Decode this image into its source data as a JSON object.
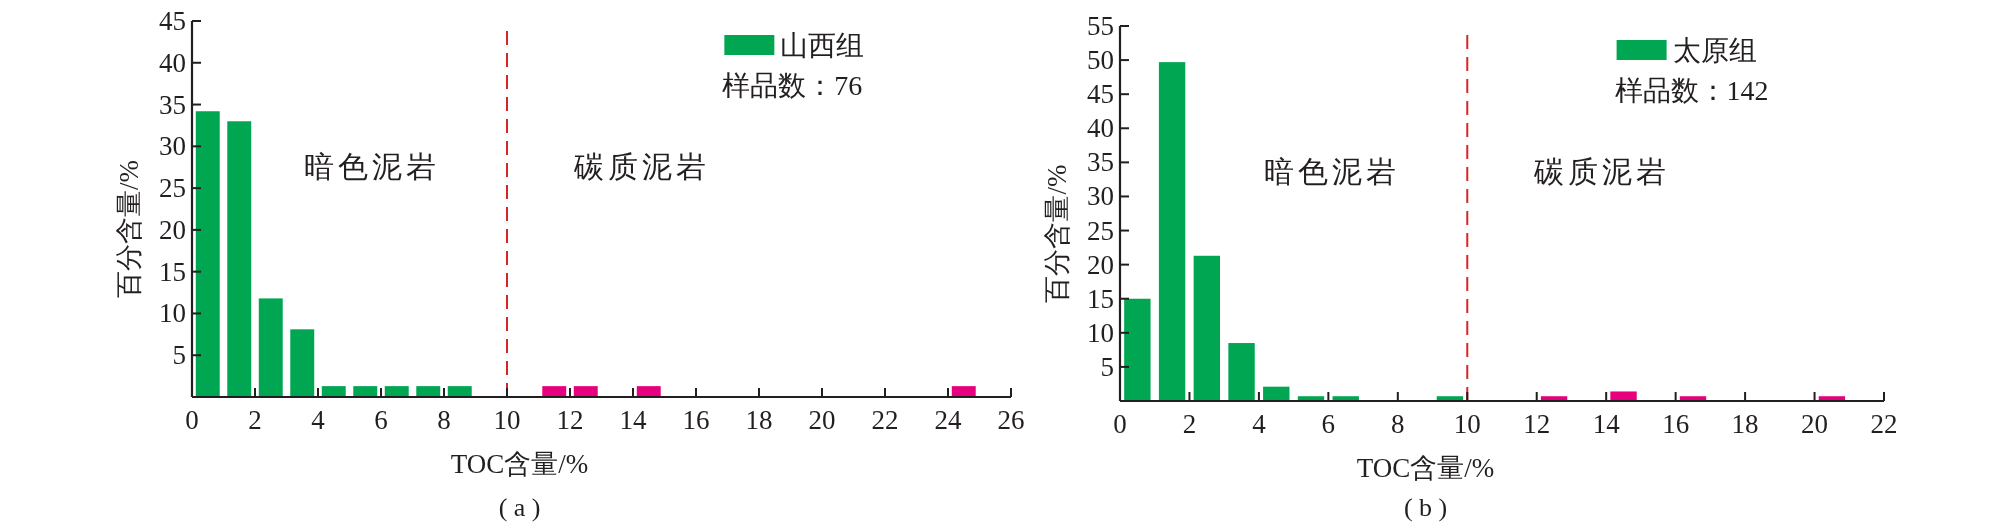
{
  "chart_data": [
    {
      "type": "histogram",
      "xlabel": "TOC含量/%",
      "ylabel": "百分含量/%",
      "legend": "top right",
      "bins": [
        0,
        1,
        2,
        3,
        4,
        5,
        6,
        7,
        8,
        9,
        10,
        11,
        12,
        13,
        14,
        15,
        16,
        17,
        18,
        19,
        20,
        21,
        22,
        23,
        24,
        25
      ],
      "series": [
        {
          "name": "山西组",
          "color": "#00a651",
          "colors": [
            "#00a651",
            "#00a651",
            "#00a651",
            "#00a651",
            "#00a651",
            "#00a651",
            "#00a651",
            "#00a651",
            "#00a651",
            "#00a651",
            "#e6007e",
            "#e6007e",
            "#e6007e",
            "#e6007e",
            "#e6007e",
            "#e6007e",
            "#e6007e",
            "#e6007e",
            "#e6007e",
            "#e6007e",
            "#e6007e",
            "#e6007e",
            "#e6007e",
            "#e6007e",
            "#e6007e"
          ],
          "values": [
            34.2,
            33,
            11.8,
            8.1,
            1.3,
            1.3,
            1.3,
            1.3,
            1.3,
            0,
            0,
            1.3,
            1.3,
            0,
            1.3,
            0,
            0,
            0,
            0,
            0,
            0,
            0,
            0,
            0,
            1.3
          ]
        }
      ],
      "xlim": [
        0,
        26
      ],
      "ylim": [
        0,
        45
      ],
      "xticks": [
        0,
        2,
        4,
        6,
        8,
        10,
        12,
        14,
        16,
        18,
        20,
        22,
        24,
        26
      ],
      "yticks": [
        5,
        10,
        15,
        20,
        25,
        30,
        35,
        40,
        45
      ],
      "ref_lines": [
        {
          "axis": "x",
          "value": 10,
          "color": "#d62728",
          "line_style": "dashed"
        }
      ],
      "annotations": [
        "样品数：76",
        "暗色泥岩",
        "碳质泥岩",
        "( a )"
      ]
    },
    {
      "type": "histogram",
      "xlabel": "TOC含量/%",
      "ylabel": "百分含量/%",
      "legend": "top right",
      "bins": [
        0,
        1,
        2,
        3,
        4,
        5,
        6,
        7,
        8,
        9,
        10,
        11,
        12,
        13,
        14,
        15,
        16,
        17,
        18,
        19,
        20,
        21
      ],
      "series": [
        {
          "name": "太原组",
          "color": "#00a651",
          "colors": [
            "#00a651",
            "#00a651",
            "#00a651",
            "#00a651",
            "#00a651",
            "#00a651",
            "#00a651",
            "#00a651",
            "#00a651",
            "#00a651",
            "#e6007e",
            "#e6007e",
            "#e6007e",
            "#e6007e",
            "#e6007e",
            "#e6007e",
            "#e6007e",
            "#e6007e",
            "#e6007e",
            "#e6007e",
            "#e6007e"
          ],
          "values": [
            15,
            49.7,
            21.3,
            8.5,
            2.1,
            0.7,
            0.7,
            0,
            0,
            0.7,
            0,
            0,
            0.7,
            0,
            1.4,
            0,
            0.7,
            0,
            0,
            0,
            0.7
          ]
        }
      ],
      "xlim": [
        0,
        22
      ],
      "ylim": [
        0,
        55
      ],
      "xticks": [
        0,
        2,
        4,
        6,
        8,
        10,
        12,
        14,
        16,
        18,
        20,
        22
      ],
      "yticks": [
        5,
        10,
        15,
        20,
        25,
        30,
        35,
        40,
        45,
        50,
        55
      ],
      "ref_lines": [
        {
          "axis": "x",
          "value": 10,
          "color": "#d62728",
          "line_style": "dashed"
        }
      ],
      "annotations": [
        "样品数：142",
        "暗色泥岩",
        "碳质泥岩",
        "( b )"
      ]
    }
  ]
}
